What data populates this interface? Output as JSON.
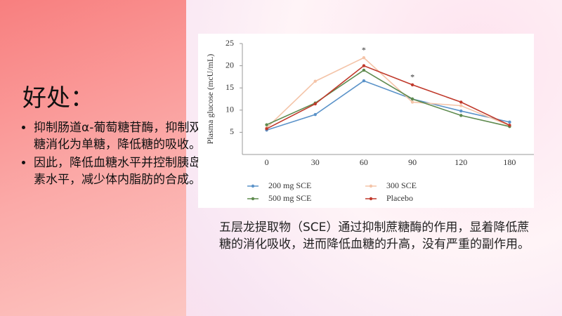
{
  "slide": {
    "title": "好处：",
    "bullets": [
      "抑制肠道α-葡萄糖苷酶，抑制双糖消化为单糖，降低糖的吸收。",
      "因此，降低血糖水平并控制胰岛素水平，减少体内脂肪的合成。"
    ],
    "caption": "五层龙提取物（SCE）通过抑制蔗糖酶的作用，显着降低蔗糖的消化吸收，进而降低血糖的升高，没有严重的副作用。"
  },
  "chart_data": {
    "type": "line",
    "y_label": "Plasma glucose (mcU/mL)",
    "categories": [
      "0",
      "30",
      "60",
      "90",
      "120",
      "180"
    ],
    "ylim": [
      0,
      25
    ],
    "yticks": [
      5,
      10,
      15,
      20,
      25
    ],
    "annotations": [
      {
        "text": "*",
        "category": "60"
      },
      {
        "text": "*",
        "category": "90"
      }
    ],
    "series": [
      {
        "name": "200 mg SCE",
        "color": "#5b93c9",
        "values": [
          5.5,
          9.0,
          16.6,
          12.5,
          9.8,
          7.3
        ]
      },
      {
        "name": "300 SCE",
        "color": "#f4c4a8",
        "values": [
          6.0,
          16.5,
          21.8,
          11.8,
          11.0,
          6.5
        ]
      },
      {
        "name": "500 mg SCE",
        "color": "#5e8a4e",
        "values": [
          6.7,
          11.6,
          19.0,
          12.5,
          8.8,
          6.3
        ]
      },
      {
        "name": "Placebo",
        "color": "#c0392b",
        "values": [
          5.8,
          11.4,
          20.0,
          15.7,
          11.8,
          6.6
        ]
      }
    ]
  }
}
